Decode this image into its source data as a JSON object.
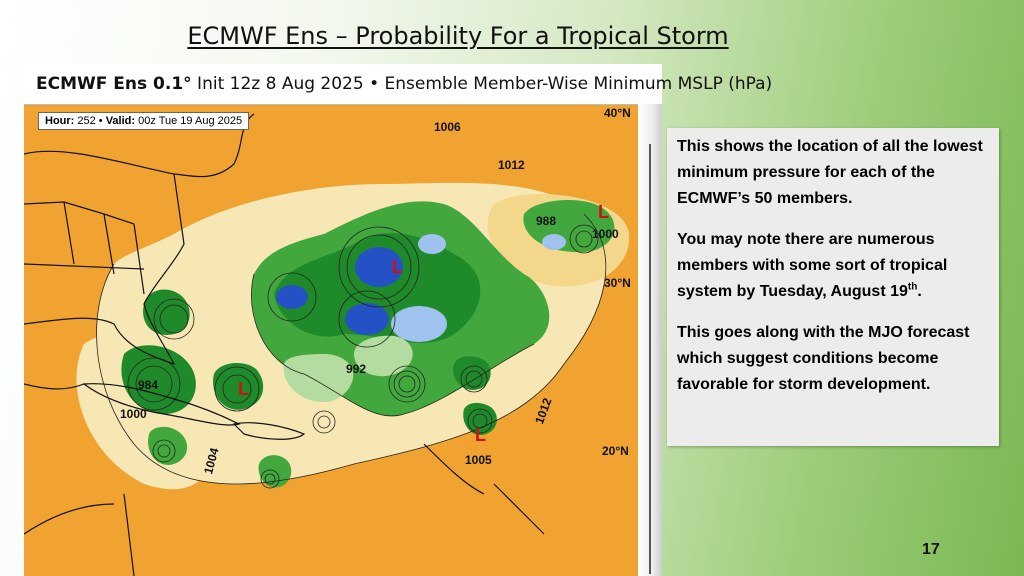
{
  "slide": {
    "title": "ECMWF Ens – Probability For a Tropical Storm",
    "number": "17"
  },
  "map": {
    "header_model": "ECMWF Ens 0.1°",
    "header_rest": " Init 12z 8 Aug 2025 • Ensemble Member-Wise Minimum MSLP (hPa)",
    "hour_label": "Hour:",
    "hour_value": " 252 • ",
    "valid_label": "Valid:",
    "valid_value": " 00z Tue 19 Aug 2025",
    "latitudes": [
      "40°N",
      "30°N",
      "20°N"
    ],
    "pressure_labels": [
      "1012",
      "1012",
      "1000",
      "1005",
      "1006",
      "1000",
      "1004",
      "984",
      "988",
      "992"
    ],
    "low_marker": "L",
    "colors": {
      "ocean_high": "#f0a331",
      "ocean_mid": "#f3c168",
      "pale": "#f7e7b4",
      "green_dark": "#1f8a2a",
      "green_mid": "#42a83d",
      "green_light": "#b4dca0",
      "blue_deep": "#2452c4",
      "blue_light": "#9fc3ee",
      "land": "#f2a534"
    }
  },
  "textbox": {
    "para1": "This shows the location of all the lowest minimum pressure for each of the  ECMWF’s 50 members.",
    "para2_main": "You may note there are numerous members with some sort of tropical system by Tuesday, August 19",
    "para2_sup": "th",
    "para2_end": ".",
    "para3": "This goes along with the MJO forecast which suggest conditions become favorable for storm development."
  }
}
